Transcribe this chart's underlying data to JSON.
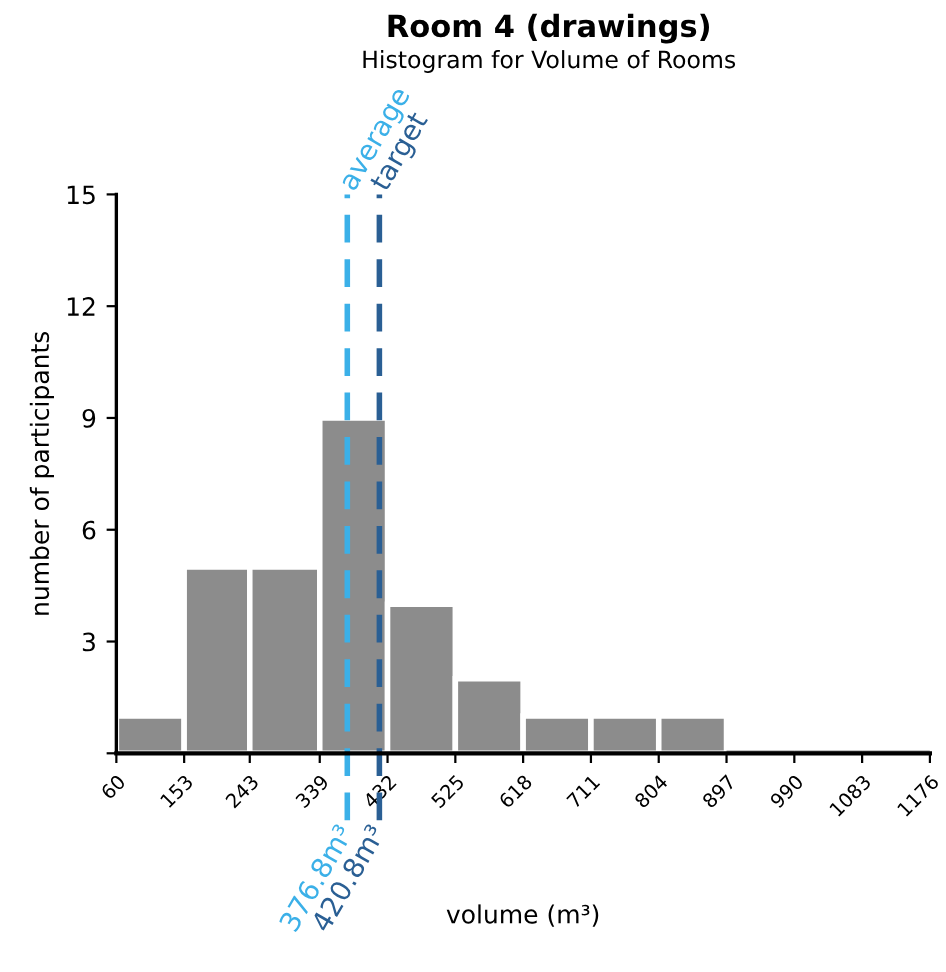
{
  "chart_data": {
    "type": "histogram",
    "title": "Room 4 (drawings)",
    "subtitle": "Histogram for Volume of Rooms",
    "xlabel": "volume (m³)",
    "ylabel": "number of participants",
    "bins": [
      60,
      153,
      243,
      339,
      432,
      525,
      618,
      711,
      804,
      897,
      990,
      1083,
      1176
    ],
    "values": [
      1,
      5,
      5,
      9,
      4,
      2,
      1,
      1,
      1,
      0,
      0,
      0
    ],
    "color": "#8c8c8c",
    "xlim": [
      60,
      1176
    ],
    "xticks": [
      60,
      153,
      243,
      339,
      432,
      525,
      618,
      711,
      804,
      897,
      990,
      1083,
      1176
    ],
    "ylim": [
      0,
      15
    ],
    "yticks": [
      {
        "value": 0,
        "label": null
      },
      3,
      6,
      9,
      12,
      15
    ],
    "grid": false,
    "ref_lines": [
      {
        "axis": "x",
        "value": 376.8,
        "label": "average",
        "color": "#3bb0e8",
        "line_style": "dashed"
      },
      {
        "axis": "x",
        "value": 420.8,
        "label": "target",
        "color": "#2a5f94",
        "line_style": "dashed"
      }
    ],
    "annotations": [
      {
        "text": "376.8m³",
        "x": 376.8,
        "y": 0
      },
      {
        "text": "420.8m³",
        "x": 420.8,
        "y": 0
      }
    ]
  }
}
